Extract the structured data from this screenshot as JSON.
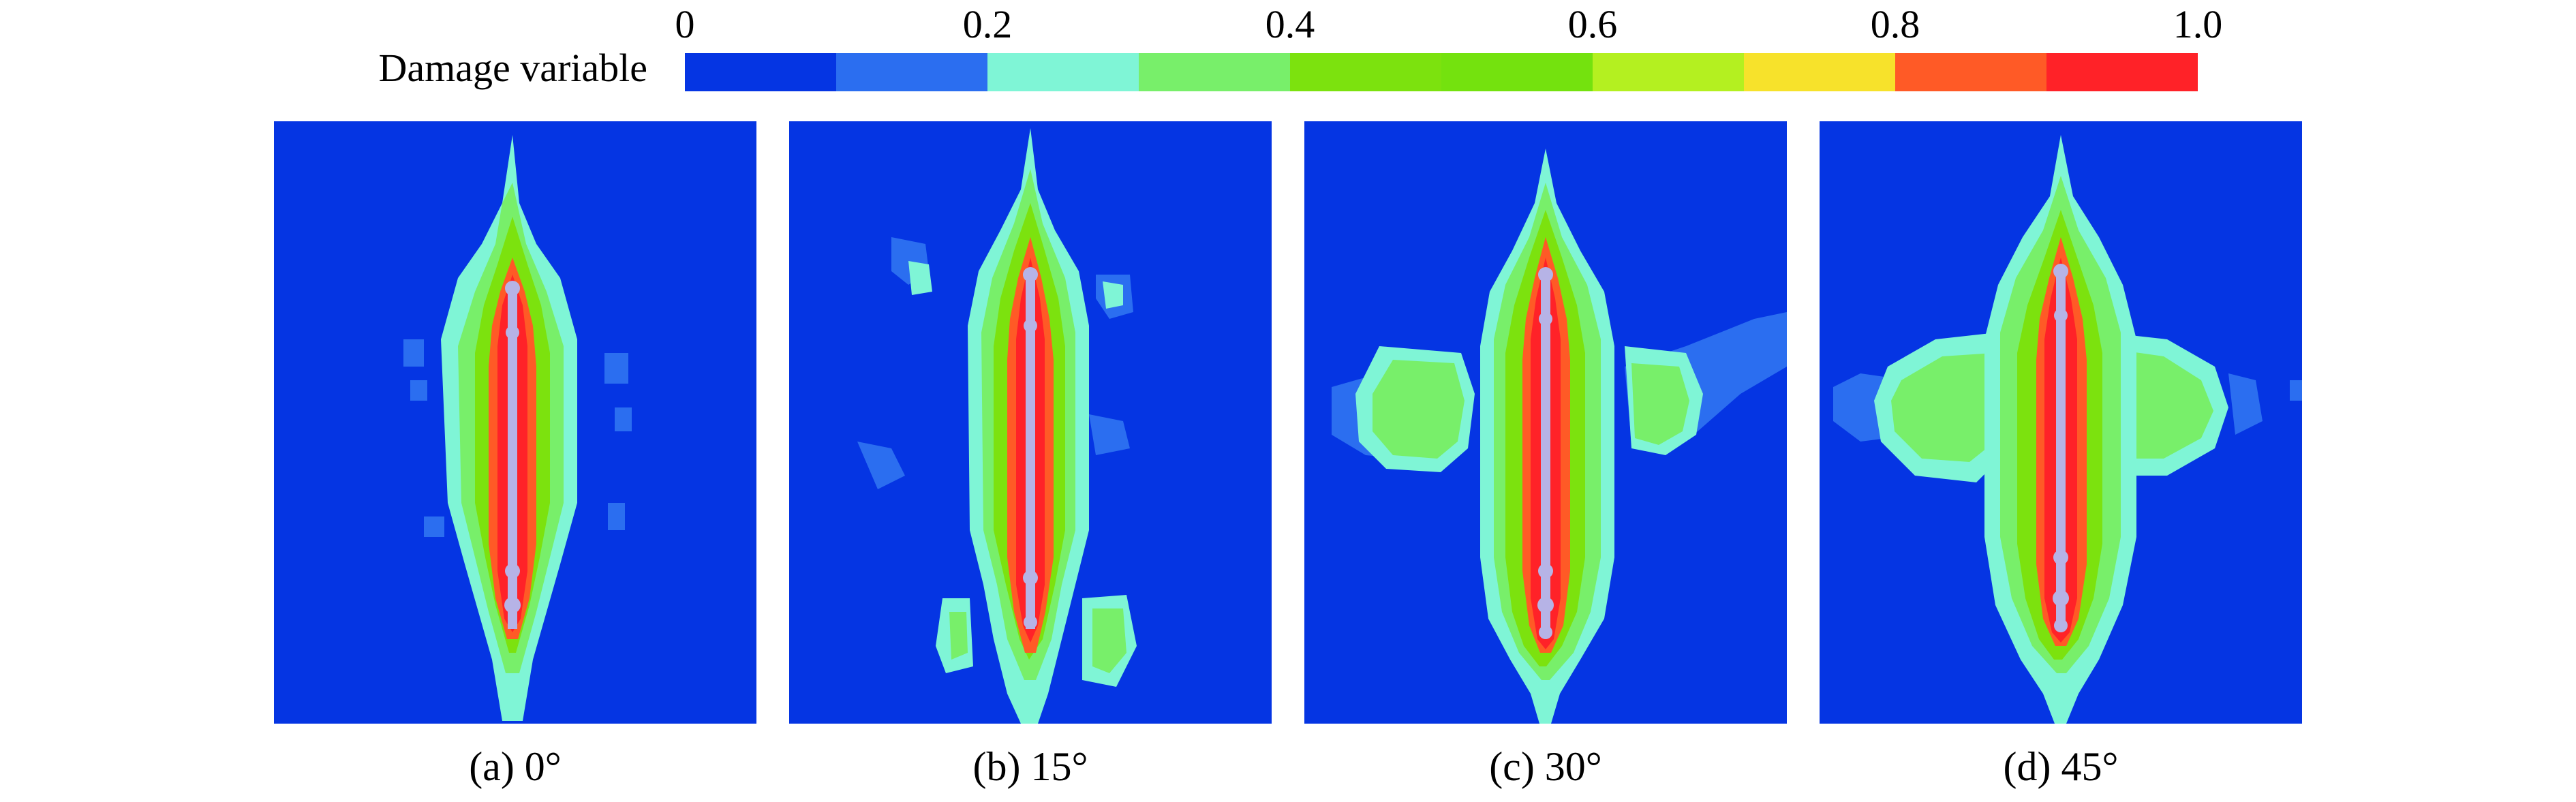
{
  "legend": {
    "title": "Damage variable",
    "ticks": [
      "0",
      "0.2",
      "0.4",
      "0.6",
      "0.8",
      "1.0"
    ],
    "colors": [
      "#0535e3",
      "#2b6ef0",
      "#7ff5d6",
      "#78ef6a",
      "#7ce20e",
      "#74e20e",
      "#b4f020",
      "#f7e22b",
      "#ff5a26",
      "#ff2228"
    ]
  },
  "panels": [
    {
      "caption": "(a) 0°"
    },
    {
      "caption": "(b) 15°"
    },
    {
      "caption": "(c) 30°"
    },
    {
      "caption": "(d) 45°"
    }
  ],
  "palette": {
    "background": "#0535e3",
    "light_blue": "#2b6ef0",
    "cyan": "#7ff5d6",
    "light_green": "#78ef6a",
    "green": "#7ce20e",
    "orange": "#ff5a26",
    "red": "#ff2228",
    "crack": "#b6b3e6"
  }
}
